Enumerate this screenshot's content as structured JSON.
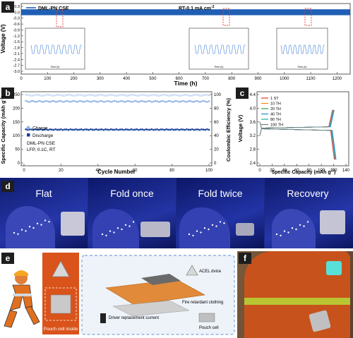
{
  "panel_labels": {
    "a": "a",
    "b": "b",
    "c": "c",
    "d": "d",
    "e": "e",
    "f": "f"
  },
  "colors": {
    "series_blue": "#1f5fb4",
    "charge_blue": "#8fb2e8",
    "discharge_blue": "#163f9b",
    "panel_label_bg": "#1e1e1e",
    "photo_blue": "#1a2a86",
    "orange": "#d9531b"
  },
  "panel_a": {
    "legend": "DML-PN CSE",
    "condition": "RT-0.1 mA cm",
    "condition_sup": "-2",
    "ylabel": "Voltage (V)",
    "xlabel": "Time (h)",
    "yticks": [
      "0.3",
      "0.0",
      "-0.3",
      "-0.6",
      "-0.9",
      "-1.2",
      "-1.5",
      "-1.8",
      "-2.1",
      "-2.4",
      "-2.7",
      "-3.0"
    ],
    "xticks": [
      "0",
      "100",
      "200",
      "300",
      "400",
      "500",
      "600",
      "700",
      "800",
      "900",
      "1000",
      "1100",
      "1200"
    ],
    "inset_ylabel": "Voltage (V)",
    "inset_xlabel": "Time (h)",
    "inset1_yticks": [
      "0.3",
      "0.2",
      "0.1",
      "0.0",
      "-0.1",
      "-0.2",
      "-0.3"
    ],
    "inset1_xticks": [
      "120",
      "130"
    ],
    "inset2_xticks": [
      "770",
      "780"
    ],
    "inset3_xticks": [
      "1090",
      "1100"
    ]
  },
  "panel_b": {
    "ylabel_left": "Specific Capacity (mAh g",
    "ylabel_left_sup": "-1",
    "ylabel_left_end": ")",
    "ylabel_right": "Coulombic Efficiency (%)",
    "xlabel": "Cycle Number",
    "legend_charge": "Charge",
    "legend_discharge": "Discharge",
    "note1": "DML-PN CSE",
    "note2": "LFP, 0.1C, RT",
    "yticks_left": [
      "0",
      "50",
      "100",
      "150",
      "200",
      "250"
    ],
    "yticks_right": [
      "0",
      "20",
      "40",
      "60",
      "80",
      "100"
    ],
    "xticks": [
      "0",
      "20",
      "40",
      "60",
      "80",
      "100"
    ]
  },
  "panel_c": {
    "ylabel": "Voltage (V)",
    "xlabel": "Specific Capacity (mAh g",
    "xlabel_sup": "-1",
    "xlabel_end": ")",
    "legend": [
      "1 ST",
      "10 TH",
      "20 TH",
      "40 TH",
      "80 TH",
      "100 TH"
    ],
    "legend_colors": [
      "#e53935",
      "#f08c00",
      "#2e9e44",
      "#1e88e5",
      "#26a6a6",
      "#7a7a7a"
    ],
    "yticks": [
      "4.4",
      "4.0",
      "3.6",
      "3.2",
      "2.8",
      "2.4"
    ],
    "xticks": [
      "0",
      "20",
      "40",
      "60",
      "80",
      "100",
      "120",
      "140"
    ]
  },
  "panel_d": {
    "captions": [
      "Flat",
      "Fold once",
      "Fold twice",
      "Recovery"
    ]
  },
  "panel_e": {
    "pouch_inside": "Pouch cell inside",
    "acel": "ACEL dvice",
    "clothing": "Fire retardant clothing",
    "driver": "Driver replacement current",
    "pouch": "Pouch cell"
  },
  "chart_data": [
    {
      "type": "line",
      "title": "",
      "series": [
        {
          "name": "DML-PN CSE",
          "x": [
            0,
            1250
          ],
          "y": [
            0.0,
            0.0
          ],
          "amplitude": 0.15
        }
      ],
      "xlabel": "Time (h)",
      "ylabel": "Voltage (V)",
      "xlim": [
        0,
        1250
      ],
      "ylim": [
        -3.0,
        0.3
      ]
    },
    {
      "type": "scatter",
      "title": "",
      "x": [
        0,
        100
      ],
      "series": [
        {
          "name": "Charge",
          "axis": "left",
          "value": 225
        },
        {
          "name": "Discharge",
          "axis": "left",
          "value": 122
        },
        {
          "axis": "right",
          "value": 99
        }
      ],
      "xlabel": "Cycle Number",
      "ylabel": "Specific Capacity (mAh g-1)",
      "ylabel_right": "Coulombic Efficiency (%)",
      "xlim": [
        0,
        100
      ],
      "ylim_left": [
        0,
        250
      ],
      "ylim_right": [
        0,
        100
      ]
    },
    {
      "type": "line",
      "title": "",
      "series": [
        {
          "name": "1 ST",
          "charge_end": [
            118,
            3.95
          ],
          "discharge_end": [
            121,
            2.5
          ]
        },
        {
          "name": "10 TH",
          "charge_end": [
            119,
            3.95
          ],
          "discharge_end": [
            122,
            2.5
          ]
        },
        {
          "name": "20 TH",
          "charge_end": [
            120,
            3.95
          ],
          "discharge_end": [
            123,
            2.5
          ]
        },
        {
          "name": "40 TH",
          "charge_end": [
            121,
            3.95
          ],
          "discharge_end": [
            124,
            2.5
          ]
        },
        {
          "name": "80 TH",
          "charge_end": [
            120,
            3.95
          ],
          "discharge_end": [
            123,
            2.5
          ]
        },
        {
          "name": "100 TH",
          "charge_end": [
            119,
            3.95
          ],
          "discharge_end": [
            122,
            2.5
          ]
        }
      ],
      "xlabel": "Specific Capacity (mAh g-1)",
      "ylabel": "Voltage (V)",
      "xlim": [
        0,
        140
      ],
      "ylim": [
        2.4,
        4.4
      ]
    }
  ]
}
